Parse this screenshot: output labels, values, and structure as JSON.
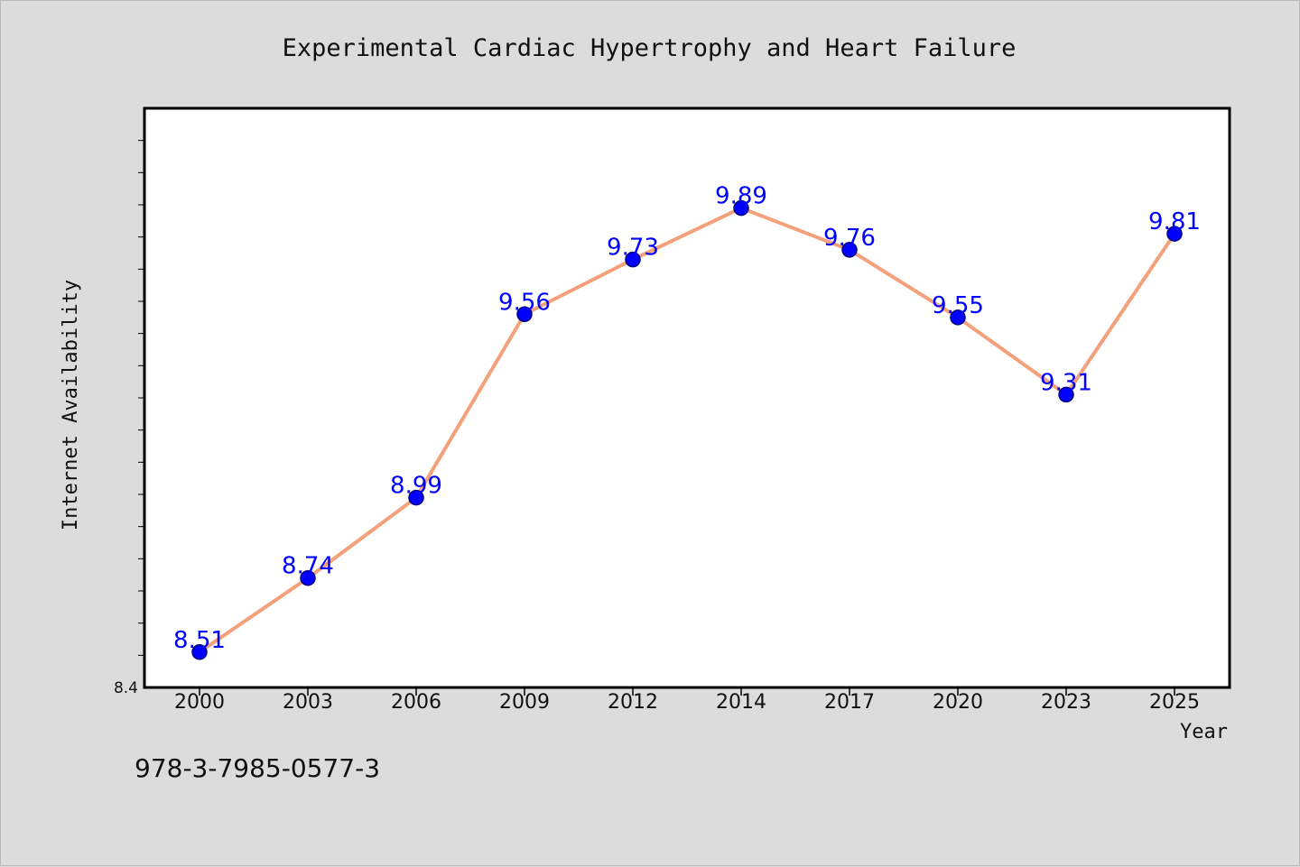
{
  "chart_data": {
    "type": "line",
    "title": "Experimental Cardiac Hypertrophy and Heart Failure",
    "xlabel": "Year",
    "ylabel": "Internet Availability",
    "categories": [
      "2000",
      "2003",
      "2006",
      "2009",
      "2012",
      "2014",
      "2017",
      "2020",
      "2023",
      "2025"
    ],
    "series": [
      {
        "values": [
          8.51,
          8.74,
          8.99,
          9.56,
          9.73,
          9.89,
          9.76,
          9.55,
          9.31,
          9.81
        ],
        "data_labels": [
          "8.51",
          "8.74",
          "8.99",
          "9.56",
          "9.73",
          "9.89",
          "9.76",
          "9.55",
          "9.31",
          "9.81"
        ]
      }
    ],
    "ylim": [
      8.4,
      10.2
    ],
    "y_tick_labels": [
      "8.4"
    ],
    "minor_y_ticks": [
      8.5,
      8.6,
      8.7,
      8.8,
      8.9,
      9.0,
      9.1,
      9.2,
      9.3,
      9.4,
      9.5,
      9.6,
      9.7,
      9.8,
      9.9,
      10.0,
      10.1
    ],
    "grid": false,
    "legend": "none",
    "colors": {
      "line": "#f4a07a",
      "marker": "#0000ff",
      "marker_edge": "#000080",
      "data_label": "#0000ff",
      "plot_background": "#ffffff",
      "figure_background": "#dcdcdc",
      "axis": "#000000"
    }
  },
  "footer": {
    "isbn": "978-3-7985-0577-3"
  }
}
